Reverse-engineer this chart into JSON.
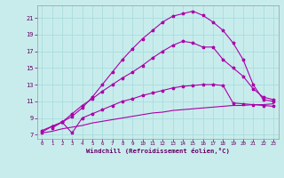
{
  "background_color": "#c8ecec",
  "grid_color": "#aadddd",
  "line_color": "#aa00aa",
  "xlabel": "Windchill (Refroidissement éolien,°C)",
  "xlabel_color": "#660066",
  "tick_color": "#660066",
  "xlim": [
    -0.5,
    23.5
  ],
  "ylim": [
    6.5,
    22.5
  ],
  "yticks": [
    7,
    9,
    11,
    13,
    15,
    17,
    19,
    21
  ],
  "xticks": [
    0,
    1,
    2,
    3,
    4,
    5,
    6,
    7,
    8,
    9,
    10,
    11,
    12,
    13,
    14,
    15,
    16,
    17,
    18,
    19,
    20,
    21,
    22,
    23
  ],
  "curve1_x": [
    0,
    1,
    2,
    3,
    4,
    5,
    6,
    7,
    8,
    9,
    10,
    11,
    12,
    13,
    14,
    15,
    16,
    17,
    18,
    19,
    20,
    21,
    22,
    23
  ],
  "curve1_y": [
    7.2,
    7.4,
    7.7,
    7.9,
    8.1,
    8.4,
    8.6,
    8.8,
    9.0,
    9.2,
    9.4,
    9.6,
    9.7,
    9.9,
    10.0,
    10.1,
    10.2,
    10.3,
    10.4,
    10.5,
    10.5,
    10.6,
    10.6,
    10.7
  ],
  "curve2_x": [
    0,
    1,
    2,
    3,
    4,
    5,
    6,
    7,
    8,
    9,
    10,
    11,
    12,
    13,
    14,
    15,
    16,
    17,
    18,
    19,
    20,
    21,
    22,
    23
  ],
  "curve2_y": [
    7.5,
    8.0,
    8.5,
    7.2,
    9.0,
    9.5,
    10.0,
    10.5,
    11.0,
    11.3,
    11.7,
    12.0,
    12.3,
    12.6,
    12.8,
    12.9,
    13.0,
    13.0,
    12.9,
    10.8,
    10.7,
    10.6,
    10.5,
    10.4
  ],
  "curve3_x": [
    1,
    2,
    3,
    4,
    5,
    6,
    7,
    8,
    9,
    10,
    11,
    12,
    13,
    14,
    15,
    16,
    17,
    18,
    19,
    20,
    21,
    22,
    23
  ],
  "curve3_y": [
    7.8,
    8.5,
    9.5,
    10.5,
    11.3,
    12.2,
    13.0,
    13.8,
    14.5,
    15.3,
    16.2,
    17.0,
    17.7,
    18.2,
    18.0,
    17.5,
    17.5,
    16.0,
    15.0,
    14.0,
    12.5,
    11.5,
    11.2
  ],
  "curve4_x": [
    0,
    1,
    2,
    3,
    4,
    5,
    6,
    7,
    8,
    9,
    10,
    11,
    12,
    13,
    14,
    15,
    16,
    17,
    18,
    19,
    20,
    21,
    22,
    23
  ],
  "curve4_y": [
    7.3,
    8.0,
    8.5,
    9.2,
    10.2,
    11.5,
    13.0,
    14.5,
    16.0,
    17.3,
    18.5,
    19.5,
    20.5,
    21.2,
    21.5,
    21.8,
    21.3,
    20.5,
    19.5,
    18.0,
    16.0,
    13.0,
    11.2,
    11.0
  ]
}
